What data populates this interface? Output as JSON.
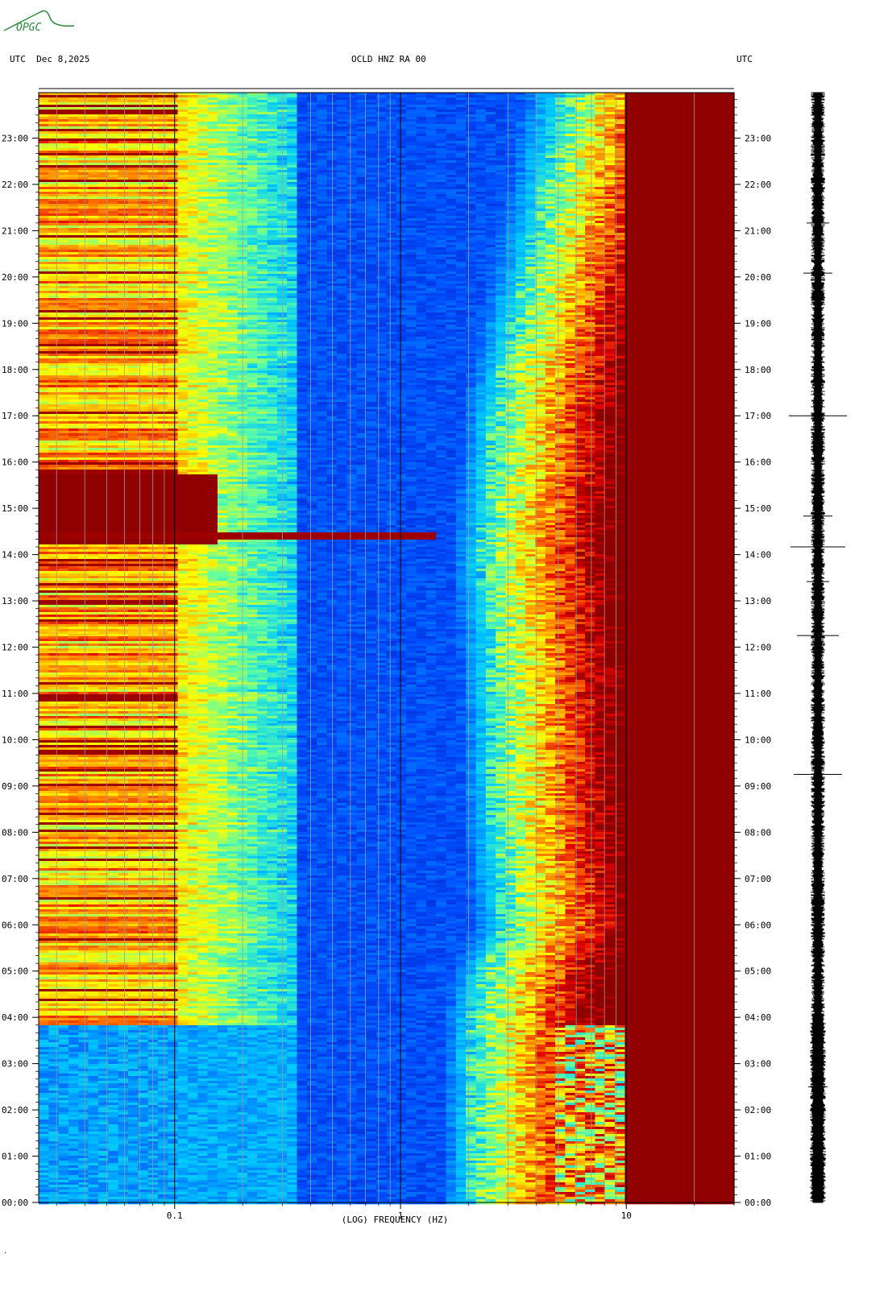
{
  "header": {
    "logo_text": "OPGC",
    "left_label": "UTC  Dec 8,2025",
    "center_label": "OCLD HNZ RA 00",
    "right_label": "UTC"
  },
  "footer": {
    "corner_mark": "."
  },
  "colors": {
    "colormap": [
      "#0000a8",
      "#0050ff",
      "#00c8ff",
      "#60ffa0",
      "#ffff00",
      "#ff8000",
      "#e00000",
      "#8b0000"
    ],
    "background": "#ffffff",
    "gridline": "#9a9a9a",
    "decade_line": "#000000",
    "trace": "#000000",
    "logo": "#2a8a3a"
  },
  "chart_data": {
    "type": "heatmap",
    "title": "OCLD HNZ RA 00",
    "xlabel": "(LOG) FREQUENCY (HZ)",
    "ylabel": "UTC",
    "x_scale": "log",
    "xlim": [
      0.025,
      30
    ],
    "x_ticks": [
      {
        "value": 0.1,
        "label": "0.1"
      },
      {
        "value": 1,
        "label": "1"
      },
      {
        "value": 10,
        "label": "10"
      }
    ],
    "ylim": [
      "00:00",
      "23:59"
    ],
    "y_ticks": [
      "00:00",
      "01:00",
      "02:00",
      "03:00",
      "04:00",
      "05:00",
      "06:00",
      "07:00",
      "08:00",
      "09:00",
      "10:00",
      "11:00",
      "12:00",
      "13:00",
      "14:00",
      "15:00",
      "16:00",
      "17:00",
      "18:00",
      "19:00",
      "20:00",
      "21:00",
      "22:00",
      "23:00"
    ],
    "grid": true,
    "features": {
      "high_power_band_above_hz": 10,
      "transition_frequency_hz": [
        {
          "time": "00:00",
          "hz": 2.0
        },
        {
          "time": "04:00",
          "hz": 2.0
        },
        {
          "time": "05:00",
          "hz": 2.2
        },
        {
          "time": "06:00",
          "hz": 2.8
        },
        {
          "time": "08:00",
          "hz": 2.5
        },
        {
          "time": "12:00",
          "hz": 2.4
        },
        {
          "time": "14:00",
          "hz": 2.2
        },
        {
          "time": "17:00",
          "hz": 2.5
        },
        {
          "time": "19:00",
          "hz": 3.0
        },
        {
          "time": "21:00",
          "hz": 3.8
        },
        {
          "time": "23:59",
          "hz": 5.0
        }
      ],
      "event": {
        "time": "14:30",
        "max_hz": 1.5
      }
    },
    "seismogram": {
      "position": "right",
      "spikes_at": [
        "02:30",
        "03:00",
        "09:15",
        "12:15",
        "13:25",
        "14:10",
        "14:50",
        "17:00",
        "20:05",
        "21:10"
      ]
    }
  }
}
